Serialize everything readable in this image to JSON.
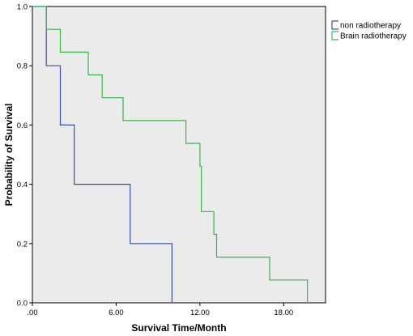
{
  "chart_data": {
    "type": "line",
    "xlabel": "Survival Time/Month",
    "ylabel": "Probability of Survival",
    "xlim": [
      0,
      21
    ],
    "ylim": [
      0,
      1.0
    ],
    "x_ticks": [
      0,
      6,
      12,
      18
    ],
    "x_tick_labels": [
      ".00",
      "6.00",
      "12.00",
      "18.00"
    ],
    "y_ticks": [
      0,
      0.2,
      0.4,
      0.6,
      0.8,
      1.0
    ],
    "y_tick_labels": [
      "0.0",
      "0.2",
      "0.4",
      "0.6",
      "0.8",
      "1.0"
    ],
    "grid": false,
    "plot_background": "#ebebeb",
    "legend_position": "outside-right-top",
    "series": [
      {
        "name": "non radiotherapy",
        "color": "#3a4fa5",
        "step": true,
        "points": [
          [
            0,
            1.0
          ],
          [
            1.0,
            1.0
          ],
          [
            1.0,
            0.8
          ],
          [
            2.0,
            0.8
          ],
          [
            2.0,
            0.6
          ],
          [
            3.0,
            0.6
          ],
          [
            3.0,
            0.4
          ],
          [
            7.0,
            0.4
          ],
          [
            7.0,
            0.2
          ],
          [
            10.0,
            0.2
          ],
          [
            10.0,
            0.0
          ]
        ]
      },
      {
        "name": "Brain radiotherapy",
        "color": "#3cb44b",
        "step": true,
        "points": [
          [
            0,
            1.0
          ],
          [
            1.0,
            1.0
          ],
          [
            1.0,
            0.923
          ],
          [
            2.0,
            0.923
          ],
          [
            2.0,
            0.846
          ],
          [
            4.0,
            0.846
          ],
          [
            4.0,
            0.769
          ],
          [
            5.0,
            0.769
          ],
          [
            5.0,
            0.692
          ],
          [
            6.5,
            0.692
          ],
          [
            6.5,
            0.615
          ],
          [
            11.0,
            0.615
          ],
          [
            11.0,
            0.538
          ],
          [
            12.0,
            0.538
          ],
          [
            12.0,
            0.461
          ],
          [
            12.1,
            0.461
          ],
          [
            12.1,
            0.308
          ],
          [
            13.0,
            0.308
          ],
          [
            13.0,
            0.231
          ],
          [
            13.2,
            0.231
          ],
          [
            13.2,
            0.154
          ],
          [
            17.0,
            0.154
          ],
          [
            17.0,
            0.077
          ],
          [
            19.7,
            0.077
          ],
          [
            19.7,
            0.0
          ]
        ]
      }
    ]
  }
}
